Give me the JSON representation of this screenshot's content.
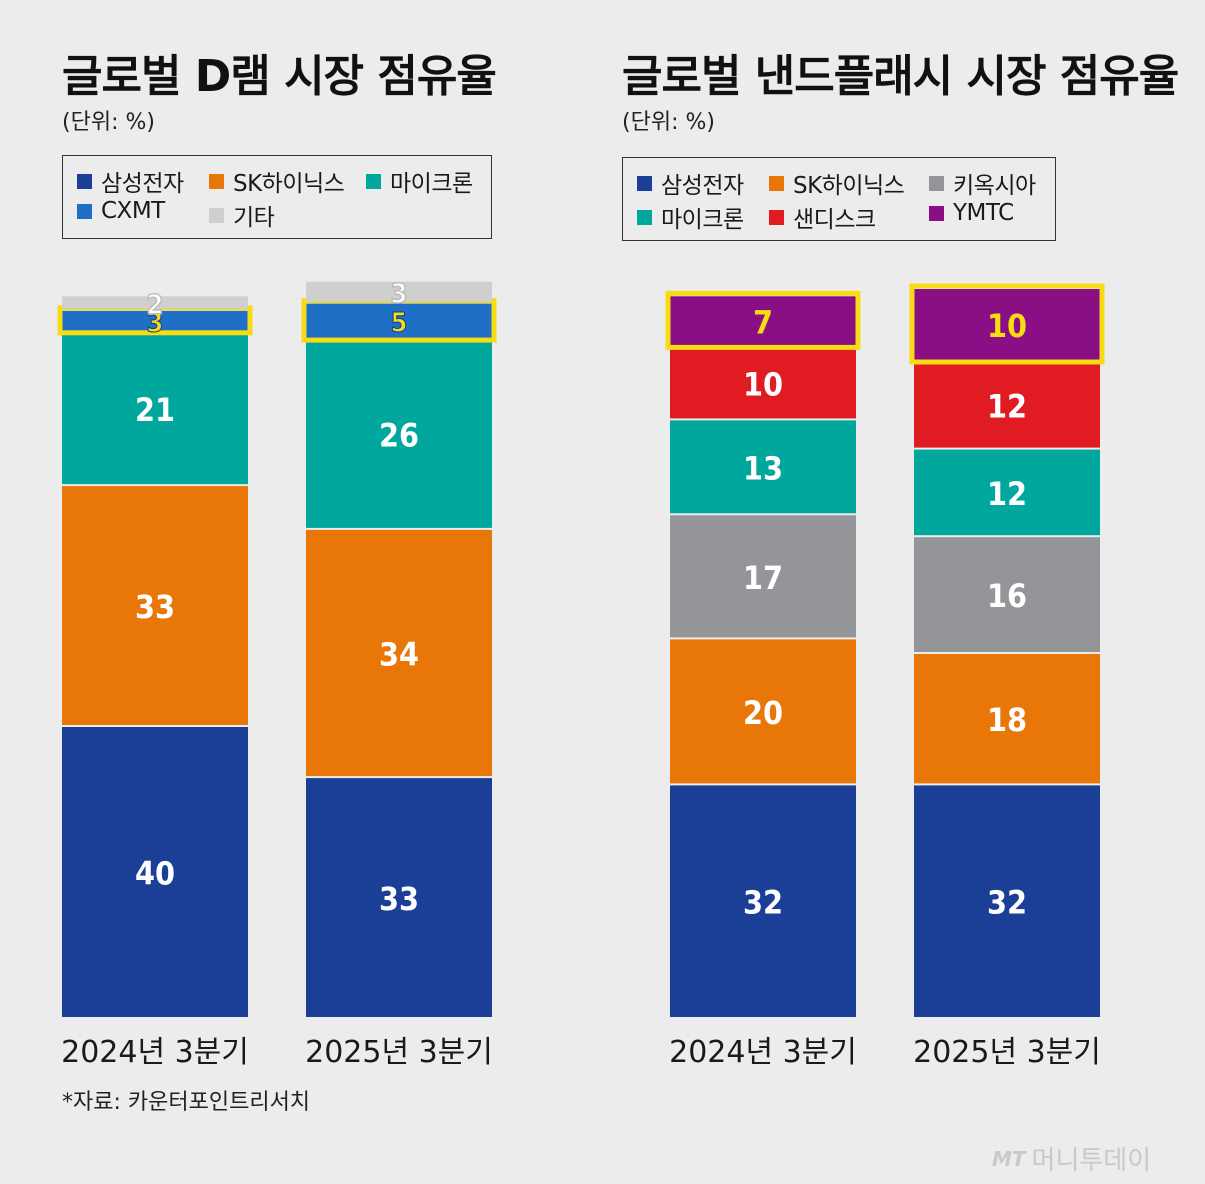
{
  "left_panel": {
    "title": "글로벌 D램 시장 점유율",
    "unit": "(단위: %)",
    "legend": [
      {
        "label": "삼성전자",
        "color": "#1b3f97"
      },
      {
        "label": "SK하이닉스",
        "color": "#e87708"
      },
      {
        "label": "마이크론",
        "color": "#00a79d"
      },
      {
        "label": "CXMT",
        "color": "#1f6fc7"
      },
      {
        "label": "기타",
        "color": "#cfcfcf"
      }
    ]
  },
  "right_panel": {
    "title": "글로벌 낸드플래시 시장 점유율",
    "unit": "(단위: %)",
    "legend": [
      {
        "label": "삼성전자",
        "color": "#1b3f97"
      },
      {
        "label": "SK하이닉스",
        "color": "#e87708"
      },
      {
        "label": "키옥시아",
        "color": "#939598"
      },
      {
        "label": "마이크론",
        "color": "#00a79d"
      },
      {
        "label": "샌디스크",
        "color": "#e01b22"
      },
      {
        "label": "YMTC",
        "color": "#8a0f85"
      }
    ]
  },
  "source": "*자료: 카운터포인트리서치",
  "watermark": {
    "mark": "MT",
    "text": "머니투데이"
  },
  "chart_data": [
    {
      "type": "bar",
      "stacked": true,
      "title": "글로벌 D램 시장 점유율",
      "unit": "%",
      "categories": [
        "2024년 3분기",
        "2025년 3분기"
      ],
      "series": [
        {
          "name": "삼성전자",
          "color": "#1b3f97",
          "values": [
            40,
            33
          ]
        },
        {
          "name": "SK하이닉스",
          "color": "#e87708",
          "values": [
            33,
            34
          ]
        },
        {
          "name": "마이크론",
          "color": "#00a79d",
          "values": [
            21,
            26
          ]
        },
        {
          "name": "CXMT",
          "color": "#1f6fc7",
          "values": [
            3,
            5
          ],
          "highlighted": true
        },
        {
          "name": "기타",
          "color": "#cfcfcf",
          "values": [
            2,
            3
          ]
        }
      ]
    },
    {
      "type": "bar",
      "stacked": true,
      "title": "글로벌 낸드플래시 시장 점유율",
      "unit": "%",
      "categories": [
        "2024년 3분기",
        "2025년 3분기"
      ],
      "series": [
        {
          "name": "삼성전자",
          "color": "#1b3f97",
          "values": [
            32,
            32
          ]
        },
        {
          "name": "SK하이닉스",
          "color": "#e87708",
          "values": [
            20,
            18
          ]
        },
        {
          "name": "키옥시아",
          "color": "#939598",
          "values": [
            17,
            16
          ]
        },
        {
          "name": "마이크론",
          "color": "#00a79d",
          "values": [
            13,
            12
          ]
        },
        {
          "name": "샌디스크",
          "color": "#e01b22",
          "values": [
            10,
            12
          ]
        },
        {
          "name": "YMTC",
          "color": "#8a0f85",
          "values": [
            7,
            10
          ],
          "highlighted": true
        }
      ]
    }
  ]
}
